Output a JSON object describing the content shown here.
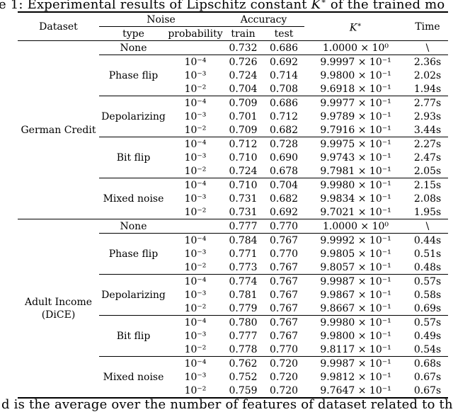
{
  "caption": {
    "pre": "e 1: Experimental results of Lipschitz constant ",
    "k": "K",
    "k_sup": "∗",
    "post": " of the trained mo"
  },
  "partial_caption": "d is the average over the number of features of dataset related to the",
  "table": {
    "headers": {
      "dataset": "Dataset",
      "noise": "Noise",
      "type": "type",
      "probability": "probability",
      "accuracy": "Accuracy",
      "train": "train",
      "test": "test",
      "k": "K",
      "k_sup": "∗",
      "time": "Time"
    },
    "blocks": [
      {
        "dataset": "German Credit",
        "none": {
          "type": "None",
          "train": "0.732",
          "test": "0.686",
          "k": "1.0000 × 10⁰",
          "time": "\\"
        },
        "groups": [
          {
            "type": "Phase flip",
            "rows": [
              {
                "p": "10⁻⁴",
                "train": "0.726",
                "test": "0.692",
                "k": "9.9997 × 10⁻¹",
                "time": "2.36s"
              },
              {
                "p": "10⁻³",
                "train": "0.724",
                "test": "0.714",
                "k": "9.9800 × 10⁻¹",
                "time": "2.02s"
              },
              {
                "p": "10⁻²",
                "train": "0.704",
                "test": "0.708",
                "k": "9.6918 × 10⁻¹",
                "time": "1.94s"
              }
            ]
          },
          {
            "type": "Depolarizing",
            "rows": [
              {
                "p": "10⁻⁴",
                "train": "0.709",
                "test": "0.686",
                "k": "9.9977 × 10⁻¹",
                "time": "2.77s"
              },
              {
                "p": "10⁻³",
                "train": "0.701",
                "test": "0.712",
                "k": "9.9789 × 10⁻¹",
                "time": "2.93s"
              },
              {
                "p": "10⁻²",
                "train": "0.709",
                "test": "0.682",
                "k": "9.7916 × 10⁻¹",
                "time": "3.44s"
              }
            ]
          },
          {
            "type": "Bit flip",
            "rows": [
              {
                "p": "10⁻⁴",
                "train": "0.712",
                "test": "0.728",
                "k": "9.9975 × 10⁻¹",
                "time": "2.27s"
              },
              {
                "p": "10⁻³",
                "train": "0.710",
                "test": "0.690",
                "k": "9.9743 × 10⁻¹",
                "time": "2.47s"
              },
              {
                "p": "10⁻²",
                "train": "0.724",
                "test": "0.678",
                "k": "9.7981 × 10⁻¹",
                "time": "2.05s"
              }
            ]
          },
          {
            "type": "Mixed noise",
            "rows": [
              {
                "p": "10⁻⁴",
                "train": "0.710",
                "test": "0.704",
                "k": "9.9980 × 10⁻¹",
                "time": "2.15s"
              },
              {
                "p": "10⁻³",
                "train": "0.731",
                "test": "0.682",
                "k": "9.9834 × 10⁻¹",
                "time": "2.08s"
              },
              {
                "p": "10⁻²",
                "train": "0.731",
                "test": "0.692",
                "k": "9.7021 × 10⁻¹",
                "time": "1.95s"
              }
            ]
          }
        ]
      },
      {
        "dataset": "Adult Income (DiCE)",
        "none": {
          "type": "None",
          "train": "0.777",
          "test": "0.770",
          "k": "1.0000 × 10⁰",
          "time": "\\"
        },
        "groups": [
          {
            "type": "Phase flip",
            "rows": [
              {
                "p": "10⁻⁴",
                "train": "0.784",
                "test": "0.767",
                "k": "9.9992 × 10⁻¹",
                "time": "0.44s"
              },
              {
                "p": "10⁻³",
                "train": "0.771",
                "test": "0.770",
                "k": "9.9805 × 10⁻¹",
                "time": "0.51s"
              },
              {
                "p": "10⁻²",
                "train": "0.773",
                "test": "0.767",
                "k": "9.8057 × 10⁻¹",
                "time": "0.48s"
              }
            ]
          },
          {
            "type": "Depolarizing",
            "rows": [
              {
                "p": "10⁻⁴",
                "train": "0.774",
                "test": "0.767",
                "k": "9.9987 × 10⁻¹",
                "time": "0.57s"
              },
              {
                "p": "10⁻³",
                "train": "0.781",
                "test": "0.767",
                "k": "9.9867 × 10⁻¹",
                "time": "0.58s"
              },
              {
                "p": "10⁻²",
                "train": "0.779",
                "test": "0.767",
                "k": "9.8667 × 10⁻¹",
                "time": "0.69s"
              }
            ]
          },
          {
            "type": "Bit flip",
            "rows": [
              {
                "p": "10⁻⁴",
                "train": "0.780",
                "test": "0.767",
                "k": "9.9980 × 10⁻¹",
                "time": "0.57s"
              },
              {
                "p": "10⁻³",
                "train": "0.777",
                "test": "0.767",
                "k": "9.9800 × 10⁻¹",
                "time": "0.49s"
              },
              {
                "p": "10⁻²",
                "train": "0.778",
                "test": "0.770",
                "k": "9.8117 × 10⁻¹",
                "time": "0.54s"
              }
            ]
          },
          {
            "type": "Mixed noise",
            "rows": [
              {
                "p": "10⁻⁴",
                "train": "0.762",
                "test": "0.720",
                "k": "9.9987 × 10⁻¹",
                "time": "0.68s"
              },
              {
                "p": "10⁻³",
                "train": "0.752",
                "test": "0.720",
                "k": "9.9812 × 10⁻¹",
                "time": "0.67s"
              },
              {
                "p": "10⁻²",
                "train": "0.759",
                "test": "0.720",
                "k": "9.7647 × 10⁻¹",
                "time": "0.67s"
              }
            ]
          }
        ]
      }
    ]
  }
}
